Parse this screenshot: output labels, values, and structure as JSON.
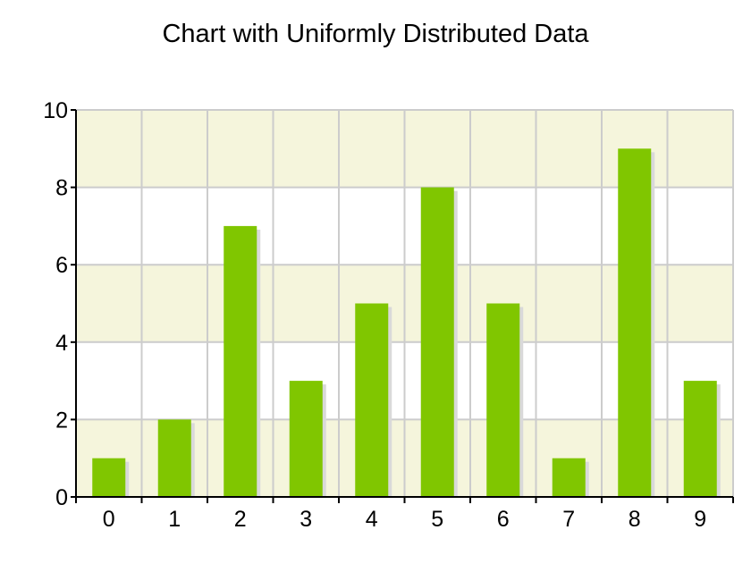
{
  "chart_data": {
    "type": "bar",
    "title": "Chart with Uniformly Distributed Data",
    "categories": [
      "0",
      "1",
      "2",
      "3",
      "4",
      "5",
      "6",
      "7",
      "8",
      "9"
    ],
    "values": [
      1,
      2,
      7,
      3,
      5,
      8,
      5,
      1,
      9,
      3
    ],
    "xlabel": "",
    "ylabel": "",
    "ylim": [
      0,
      10
    ],
    "yticks": [
      0,
      2,
      4,
      6,
      8,
      10
    ],
    "grid": true,
    "legend": "none",
    "colors": {
      "bar": "#80c600",
      "bar_shadow": "#d9d9d9",
      "band_alt": "#f5f5dc",
      "band": "#ffffff",
      "grid": "#cccccc",
      "axis": "#000000"
    }
  }
}
